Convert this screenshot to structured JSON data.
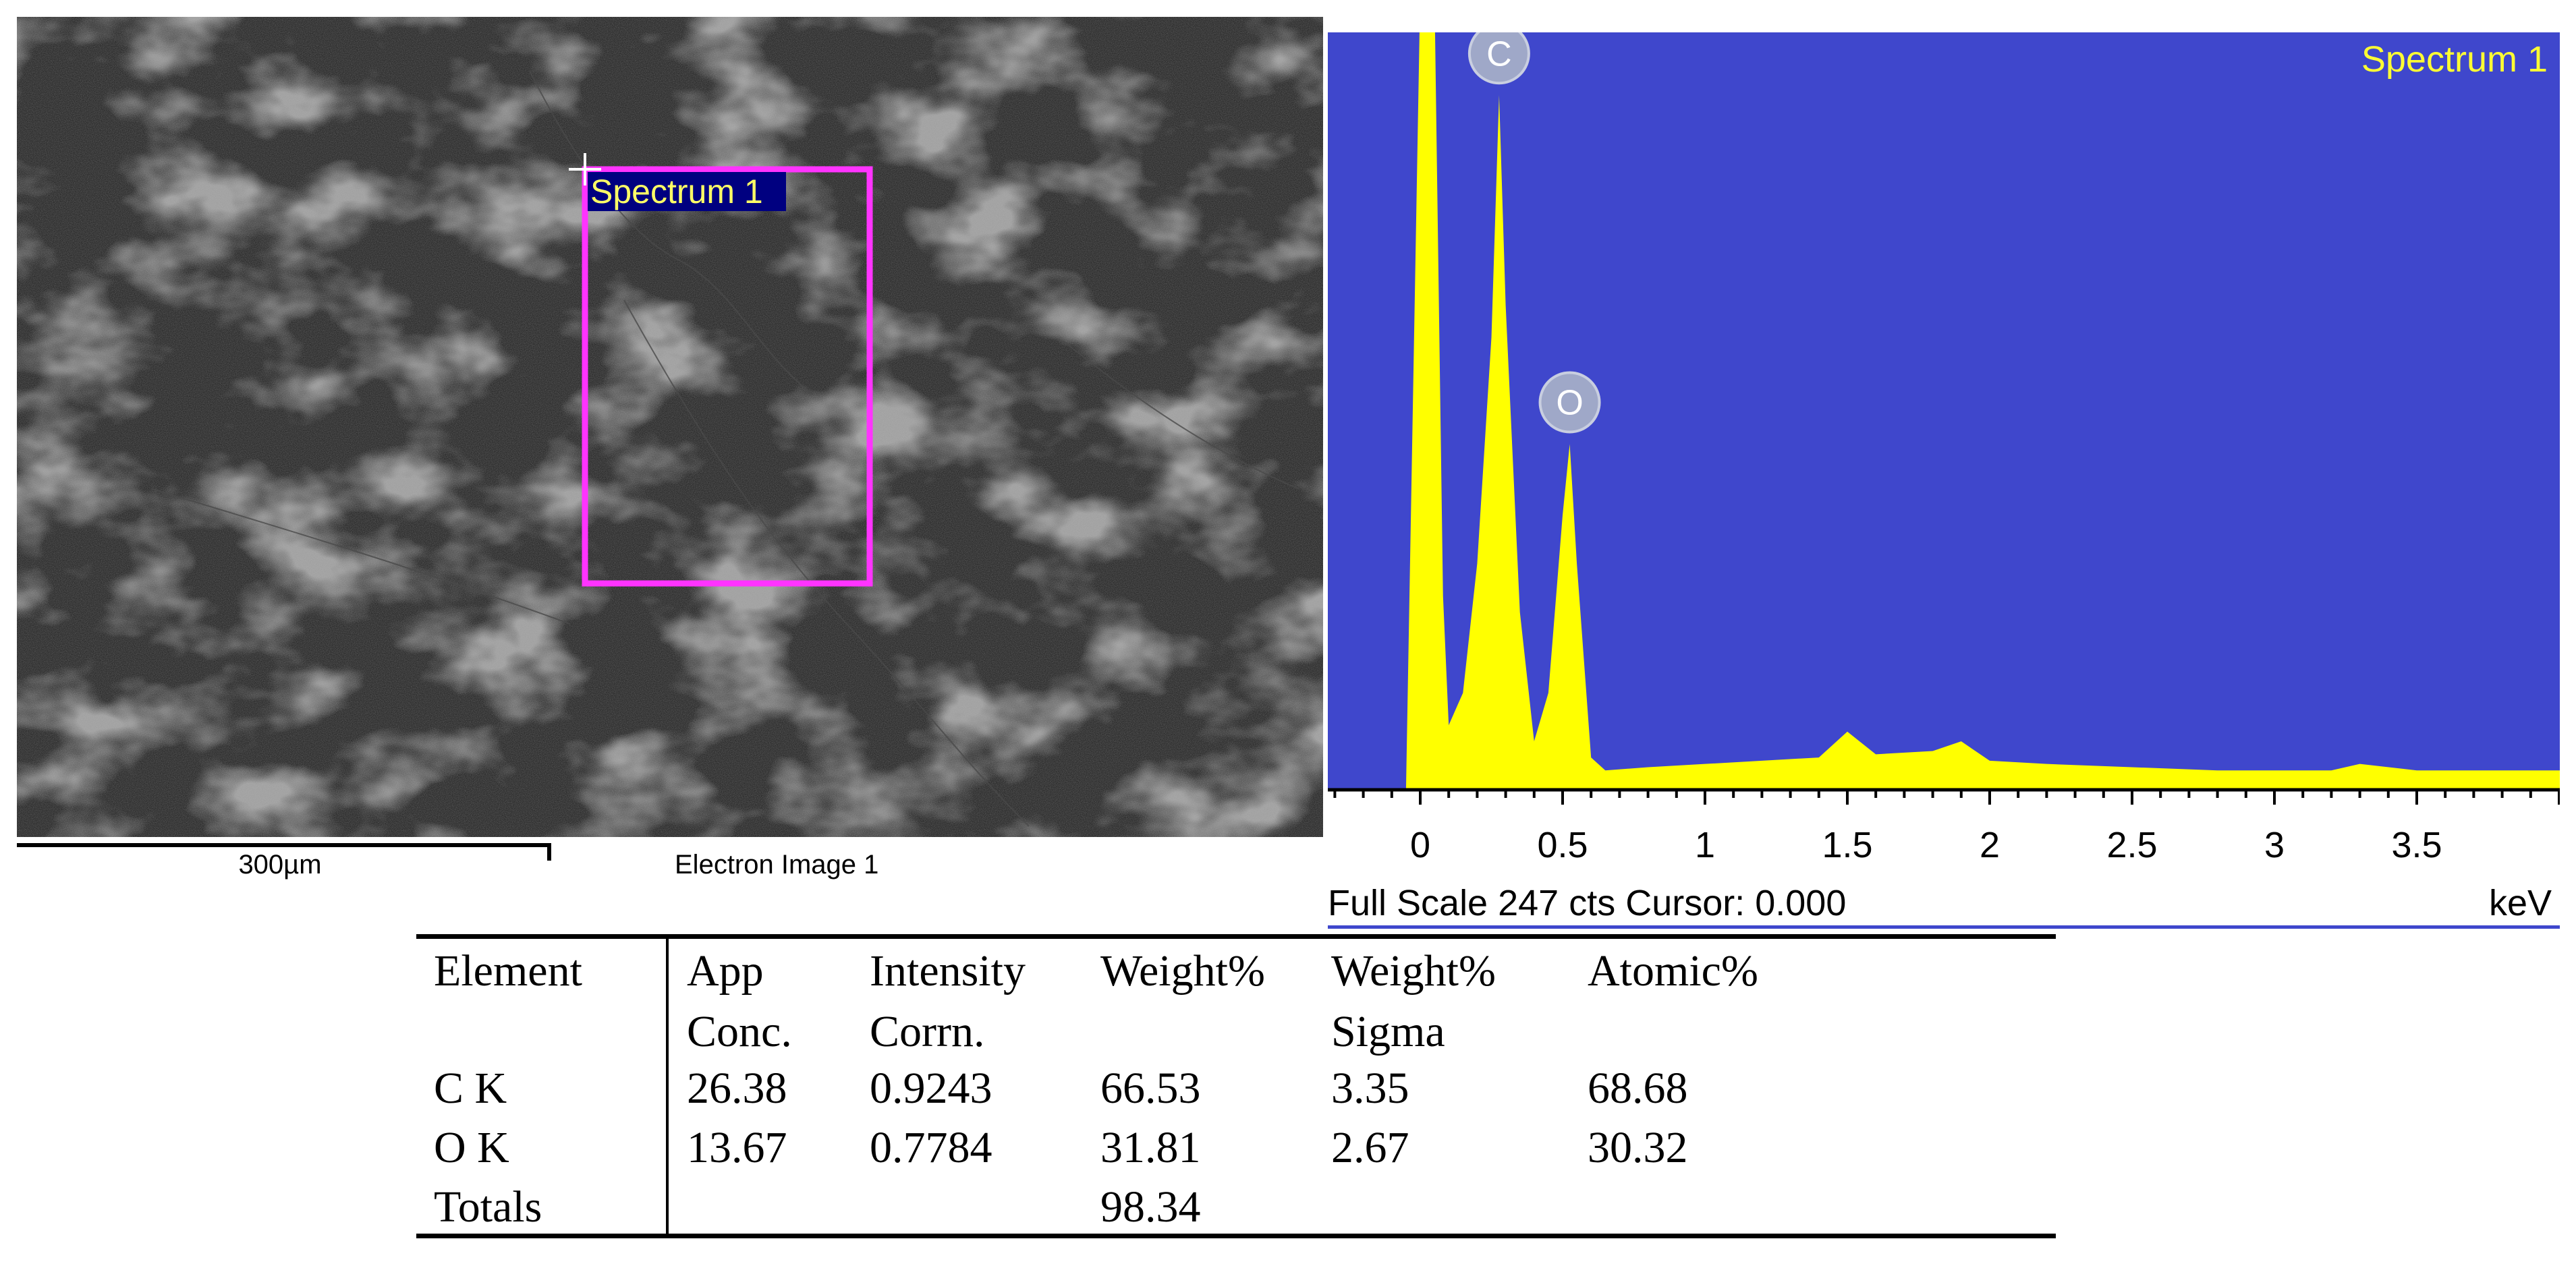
{
  "sem_image": {
    "caption": "Electron Image 1",
    "scale_bar": "300µm",
    "selection_label": "Spectrum 1",
    "selection_color": "#ff33ff",
    "label_bg": "#000080",
    "label_color": "#ffff66"
  },
  "spectrum": {
    "title": "Spectrum 1",
    "background_color": "#3f47cc",
    "trace_color": "#ffff00",
    "x_unit": "keV",
    "footer": "Full Scale 247 cts Cursor: 0.000",
    "x_ticks": [
      "0",
      "0.5",
      "1",
      "1.5",
      "2",
      "2.5",
      "3",
      "3.5"
    ],
    "peaks": [
      {
        "element": "C",
        "kev": 0.277
      },
      {
        "element": "O",
        "kev": 0.525
      }
    ]
  },
  "chart_data": {
    "type": "area",
    "title": "Spectrum 1",
    "xlabel": "keV",
    "ylabel": "",
    "xlim": [
      -0.1,
      3.95
    ],
    "ylim": [
      0,
      247
    ],
    "grid": false,
    "x": [
      -0.05,
      0.0,
      0.02,
      0.05,
      0.08,
      0.1,
      0.15,
      0.2,
      0.25,
      0.277,
      0.3,
      0.35,
      0.4,
      0.45,
      0.5,
      0.525,
      0.55,
      0.6,
      0.65,
      0.8,
      1.0,
      1.2,
      1.4,
      1.5,
      1.6,
      1.8,
      1.9,
      2.0,
      2.2,
      2.5,
      2.8,
      3.0,
      3.2,
      3.3,
      3.5,
      3.7,
      3.9
    ],
    "y": [
      0,
      247,
      247,
      247,
      60,
      20,
      30,
      70,
      140,
      215,
      150,
      55,
      15,
      30,
      85,
      107,
      70,
      10,
      6,
      7,
      8,
      9,
      10,
      18,
      11,
      12,
      15,
      9,
      8,
      7,
      6,
      6,
      6,
      8,
      6,
      6,
      6
    ],
    "peak_labels": [
      {
        "label": "C",
        "x": 0.277
      },
      {
        "label": "O",
        "x": 0.525
      }
    ]
  },
  "table": {
    "headers": [
      [
        "Element",
        ""
      ],
      [
        "App",
        "Conc."
      ],
      [
        "Intensity",
        "Corrn."
      ],
      [
        "Weight%",
        ""
      ],
      [
        "Weight%",
        "Sigma"
      ],
      [
        "Atomic%",
        ""
      ]
    ],
    "rows": [
      [
        "C K",
        "26.38",
        "0.9243",
        "66.53",
        "3.35",
        "68.68"
      ],
      [
        "O K",
        "13.67",
        "0.7784",
        "31.81",
        "2.67",
        "30.32"
      ],
      [
        "Totals",
        "",
        "",
        "98.34",
        "",
        ""
      ]
    ]
  }
}
